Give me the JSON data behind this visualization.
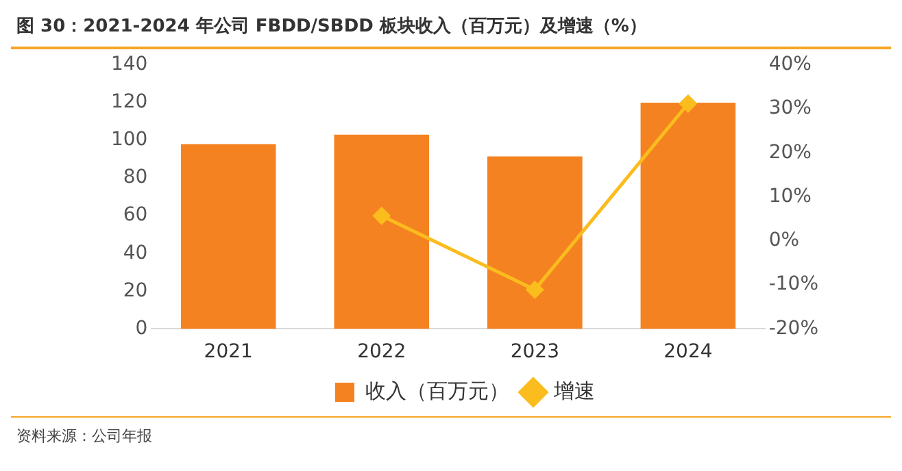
{
  "chart_data": {
    "type": "bar",
    "title": "图 30：2021-2024 年公司 FBDD/SBDD 板块收入（百万元）及增速（%）",
    "categories": [
      "2021",
      "2022",
      "2023",
      "2024"
    ],
    "series": [
      {
        "name": "收入（百万元）",
        "color": "#f58220",
        "values": [
          98,
          103,
          91.5,
          120
        ]
      },
      {
        "name": "增速",
        "type": "line",
        "axis": "y2",
        "color": "#fbbc1e",
        "marker": "diamond",
        "values": [
          null,
          5.7,
          -11.1,
          31.2
        ]
      }
    ],
    "ylim": [
      0,
      140
    ],
    "yticks": [
      0,
      20,
      40,
      60,
      80,
      100,
      120,
      140
    ],
    "y2lim": [
      -20,
      40
    ],
    "y2ticks": [
      {
        "value": -20,
        "label": "-20%"
      },
      {
        "value": -10,
        "label": "-10%"
      },
      {
        "value": 0,
        "label": "0%"
      },
      {
        "value": 10,
        "label": "10%"
      },
      {
        "value": 20,
        "label": "20%"
      },
      {
        "value": 30,
        "label": "30%"
      },
      {
        "value": 40,
        "label": "40%"
      }
    ],
    "grid": false,
    "legend": "bottom",
    "annotations": [
      "资料来源：公司年报"
    ]
  }
}
